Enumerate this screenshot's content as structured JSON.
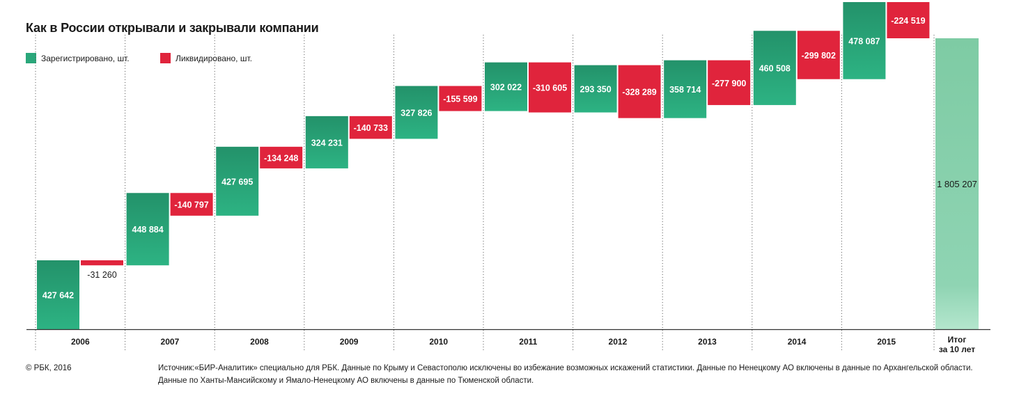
{
  "title": "Как в России открывали и закрывали компании",
  "legend": [
    {
      "label": "Зарегистрировано, шт.",
      "color": "#2aa77a"
    },
    {
      "label": "Ликвидировано, шт.",
      "color": "#e0243c"
    }
  ],
  "chart_data": {
    "type": "bar",
    "subtype": "waterfall",
    "categories": [
      "2006",
      "2007",
      "2008",
      "2009",
      "2010",
      "2011",
      "2012",
      "2013",
      "2014",
      "2015"
    ],
    "series": [
      {
        "name": "Зарегистрировано, шт.",
        "color": "#2aa77a",
        "values": [
          427642,
          448884,
          427695,
          324231,
          327826,
          302022,
          293350,
          358714,
          460508,
          478087
        ],
        "labels": [
          "427 642",
          "448 884",
          "427 695",
          "324 231",
          "327 826",
          "302 022",
          "293 350",
          "358 714",
          "460 508",
          "478 087"
        ]
      },
      {
        "name": "Ликвидировано, шт.",
        "color": "#e0243c",
        "values": [
          -31260,
          -140797,
          -134248,
          -140733,
          -155599,
          -310605,
          -328289,
          -277900,
          -299802,
          -224519
        ],
        "labels": [
          "-31 260",
          "-140 797",
          "-134 248",
          "-140 733",
          "-155 599",
          "-310 605",
          "-328 289",
          "-277 900",
          "-299 802",
          "-224 519"
        ]
      }
    ],
    "total": {
      "label_lines": [
        "Итог",
        "за 10 лет"
      ],
      "value": 1805207,
      "value_label": "1 805 207",
      "color": "#7fcfa8"
    }
  },
  "footer": {
    "copyright": "© РБК, 2016",
    "source_line1": "Источник:«БИР-Аналитик» специально для РБК. Данные по Крыму и Севастополю исключены во избежание возможных искажений статистики. Данные по Ненецкому АО включены в данные по Архангельской области.",
    "source_line2": "Данные по Ханты-Мансийскому и Ямало-Ненецкому АО включены в данные по Тюменской области."
  }
}
